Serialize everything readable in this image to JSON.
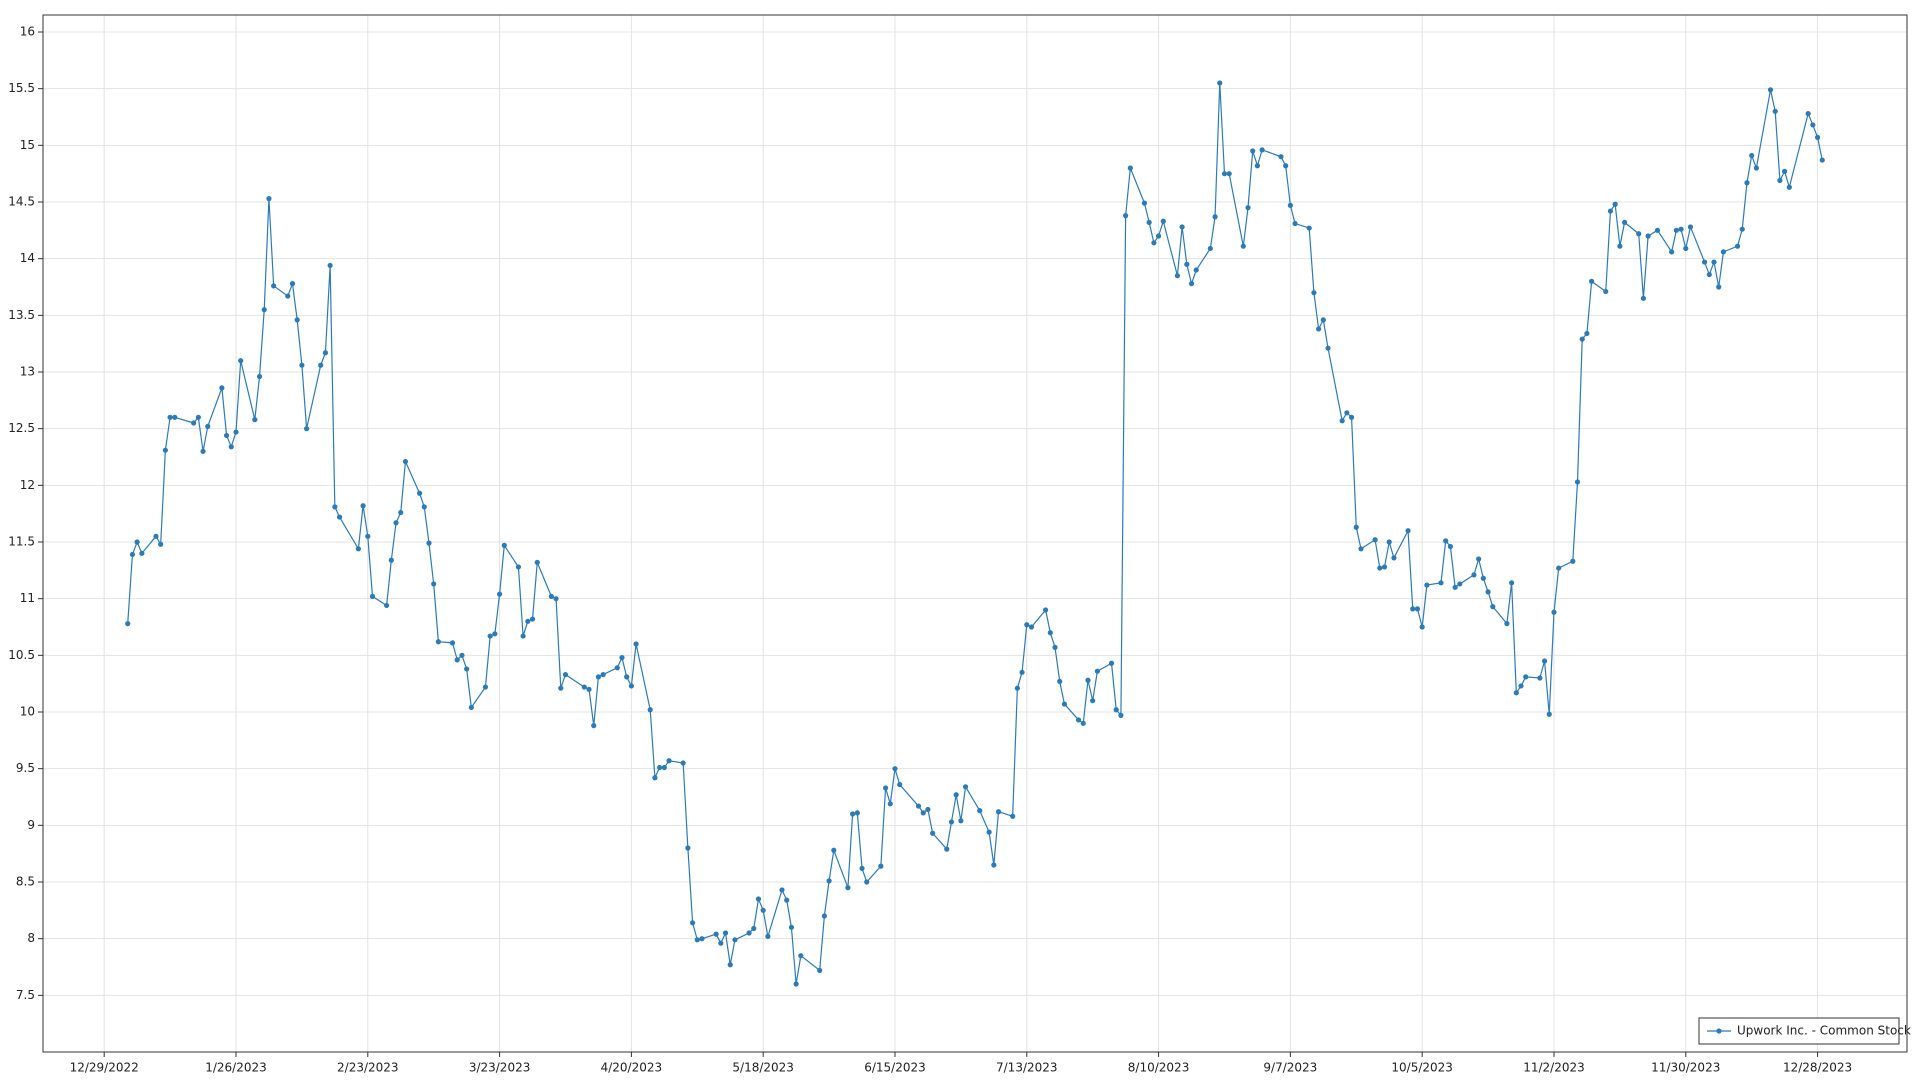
{
  "chart_data": {
    "type": "line",
    "x": [
      "2023-01-03",
      "2023-01-04",
      "2023-01-05",
      "2023-01-06",
      "2023-01-09",
      "2023-01-10",
      "2023-01-11",
      "2023-01-12",
      "2023-01-13",
      "2023-01-17",
      "2023-01-18",
      "2023-01-19",
      "2023-01-20",
      "2023-01-23",
      "2023-01-24",
      "2023-01-25",
      "2023-01-26",
      "2023-01-27",
      "2023-01-30",
      "2023-01-31",
      "2023-02-01",
      "2023-02-02",
      "2023-02-03",
      "2023-02-06",
      "2023-02-07",
      "2023-02-08",
      "2023-02-09",
      "2023-02-10",
      "2023-02-13",
      "2023-02-14",
      "2023-02-15",
      "2023-02-16",
      "2023-02-17",
      "2023-02-21",
      "2023-02-22",
      "2023-02-23",
      "2023-02-24",
      "2023-02-27",
      "2023-02-28",
      "2023-03-01",
      "2023-03-02",
      "2023-03-03",
      "2023-03-06",
      "2023-03-07",
      "2023-03-08",
      "2023-03-09",
      "2023-03-10",
      "2023-03-13",
      "2023-03-14",
      "2023-03-15",
      "2023-03-16",
      "2023-03-17",
      "2023-03-20",
      "2023-03-21",
      "2023-03-22",
      "2023-03-23",
      "2023-03-24",
      "2023-03-27",
      "2023-03-28",
      "2023-03-29",
      "2023-03-30",
      "2023-03-31",
      "2023-04-03",
      "2023-04-04",
      "2023-04-05",
      "2023-04-06",
      "2023-04-10",
      "2023-04-11",
      "2023-04-12",
      "2023-04-13",
      "2023-04-14",
      "2023-04-17",
      "2023-04-18",
      "2023-04-19",
      "2023-04-20",
      "2023-04-21",
      "2023-04-24",
      "2023-04-25",
      "2023-04-26",
      "2023-04-27",
      "2023-04-28",
      "2023-05-01",
      "2023-05-02",
      "2023-05-03",
      "2023-05-04",
      "2023-05-05",
      "2023-05-08",
      "2023-05-09",
      "2023-05-10",
      "2023-05-11",
      "2023-05-12",
      "2023-05-15",
      "2023-05-16",
      "2023-05-17",
      "2023-05-18",
      "2023-05-19",
      "2023-05-22",
      "2023-05-23",
      "2023-05-24",
      "2023-05-25",
      "2023-05-26",
      "2023-05-30",
      "2023-05-31",
      "2023-06-01",
      "2023-06-02",
      "2023-06-05",
      "2023-06-06",
      "2023-06-07",
      "2023-06-08",
      "2023-06-09",
      "2023-06-12",
      "2023-06-13",
      "2023-06-14",
      "2023-06-15",
      "2023-06-16",
      "2023-06-20",
      "2023-06-21",
      "2023-06-22",
      "2023-06-23",
      "2023-06-26",
      "2023-06-27",
      "2023-06-28",
      "2023-06-29",
      "2023-06-30",
      "2023-07-03",
      "2023-07-05",
      "2023-07-06",
      "2023-07-07",
      "2023-07-10",
      "2023-07-11",
      "2023-07-12",
      "2023-07-13",
      "2023-07-14",
      "2023-07-17",
      "2023-07-18",
      "2023-07-19",
      "2023-07-20",
      "2023-07-21",
      "2023-07-24",
      "2023-07-25",
      "2023-07-26",
      "2023-07-27",
      "2023-07-28",
      "2023-07-31",
      "2023-08-01",
      "2023-08-02",
      "2023-08-03",
      "2023-08-04",
      "2023-08-07",
      "2023-08-08",
      "2023-08-09",
      "2023-08-10",
      "2023-08-11",
      "2023-08-14",
      "2023-08-15",
      "2023-08-16",
      "2023-08-17",
      "2023-08-18",
      "2023-08-21",
      "2023-08-22",
      "2023-08-23",
      "2023-08-24",
      "2023-08-25",
      "2023-08-28",
      "2023-08-29",
      "2023-08-30",
      "2023-08-31",
      "2023-09-01",
      "2023-09-05",
      "2023-09-06",
      "2023-09-07",
      "2023-09-08",
      "2023-09-11",
      "2023-09-12",
      "2023-09-13",
      "2023-09-14",
      "2023-09-15",
      "2023-09-18",
      "2023-09-19",
      "2023-09-20",
      "2023-09-21",
      "2023-09-22",
      "2023-09-25",
      "2023-09-26",
      "2023-09-27",
      "2023-09-28",
      "2023-09-29",
      "2023-10-02",
      "2023-10-03",
      "2023-10-04",
      "2023-10-05",
      "2023-10-06",
      "2023-10-09",
      "2023-10-10",
      "2023-10-11",
      "2023-10-12",
      "2023-10-13",
      "2023-10-16",
      "2023-10-17",
      "2023-10-18",
      "2023-10-19",
      "2023-10-20",
      "2023-10-23",
      "2023-10-24",
      "2023-10-25",
      "2023-10-26",
      "2023-10-27",
      "2023-10-30",
      "2023-10-31",
      "2023-11-01",
      "2023-11-02",
      "2023-11-03",
      "2023-11-06",
      "2023-11-07",
      "2023-11-08",
      "2023-11-09",
      "2023-11-10",
      "2023-11-13",
      "2023-11-14",
      "2023-11-15",
      "2023-11-16",
      "2023-11-17",
      "2023-11-20",
      "2023-11-21",
      "2023-11-22",
      "2023-11-24",
      "2023-11-27",
      "2023-11-28",
      "2023-11-29",
      "2023-11-30",
      "2023-12-01",
      "2023-12-04",
      "2023-12-05",
      "2023-12-06",
      "2023-12-07",
      "2023-12-08",
      "2023-12-11",
      "2023-12-12",
      "2023-12-13",
      "2023-12-14",
      "2023-12-15",
      "2023-12-18",
      "2023-12-19",
      "2023-12-20",
      "2023-12-21",
      "2023-12-22",
      "2023-12-26",
      "2023-12-27",
      "2023-12-28",
      "2023-12-29"
    ],
    "series": [
      {
        "name": "Upwork Inc. - Common Stock",
        "color": "#2b7bb9",
        "values": [
          10.78,
          11.39,
          11.5,
          11.4,
          11.55,
          11.48,
          12.31,
          12.6,
          12.6,
          12.55,
          12.6,
          12.3,
          12.52,
          12.86,
          12.44,
          12.34,
          12.47,
          13.1,
          12.58,
          12.96,
          13.55,
          14.53,
          13.76,
          13.67,
          13.78,
          13.46,
          13.06,
          12.5,
          13.06,
          13.17,
          13.94,
          11.81,
          11.72,
          11.44,
          11.82,
          11.55,
          11.02,
          10.94,
          11.34,
          11.67,
          11.76,
          12.21,
          11.93,
          11.81,
          11.49,
          11.13,
          10.62,
          10.61,
          10.46,
          10.5,
          10.38,
          10.04,
          10.22,
          10.67,
          10.69,
          11.04,
          11.47,
          11.28,
          10.67,
          10.8,
          10.82,
          11.32,
          11.02,
          11.0,
          10.21,
          10.33,
          10.22,
          10.2,
          9.88,
          10.31,
          10.33,
          10.39,
          10.48,
          10.31,
          10.23,
          10.6,
          10.02,
          9.42,
          9.51,
          9.51,
          9.57,
          9.55,
          8.8,
          8.14,
          7.99,
          8.0,
          8.04,
          7.96,
          8.05,
          7.77,
          7.99,
          8.05,
          8.09,
          8.35,
          8.25,
          8.02,
          8.43,
          8.34,
          8.1,
          7.6,
          7.85,
          7.72,
          8.2,
          8.51,
          8.78,
          8.45,
          9.1,
          9.11,
          8.62,
          8.5,
          8.64,
          9.33,
          9.19,
          9.5,
          9.36,
          9.17,
          9.11,
          9.14,
          8.93,
          8.79,
          9.03,
          9.27,
          9.04,
          9.34,
          9.13,
          8.94,
          8.65,
          9.12,
          9.08,
          10.21,
          10.35,
          10.77,
          10.75,
          10.9,
          10.7,
          10.57,
          10.27,
          10.07,
          9.93,
          9.9,
          10.28,
          10.1,
          10.36,
          10.43,
          10.02,
          9.97,
          14.38,
          14.8,
          14.49,
          14.32,
          14.14,
          14.2,
          14.33,
          13.85,
          14.28,
          13.95,
          13.78,
          13.9,
          14.09,
          14.37,
          15.55,
          14.75,
          14.75,
          14.11,
          14.45,
          14.95,
          14.82,
          14.96,
          14.9,
          14.82,
          14.47,
          14.31,
          14.27,
          13.7,
          13.38,
          13.46,
          13.21,
          12.57,
          12.64,
          12.6,
          11.63,
          11.44,
          11.52,
          11.27,
          11.28,
          11.5,
          11.36,
          11.6,
          10.91,
          10.91,
          10.75,
          11.12,
          11.14,
          11.51,
          11.46,
          11.1,
          11.13,
          11.21,
          11.35,
          11.18,
          11.06,
          10.93,
          10.78,
          11.14,
          10.17,
          10.23,
          10.31,
          10.3,
          10.45,
          9.98,
          10.88,
          11.27,
          11.33,
          12.03,
          13.29,
          13.34,
          13.8,
          13.71,
          14.42,
          14.48,
          14.11,
          14.32,
          14.22,
          13.65,
          14.2,
          14.25,
          14.06,
          14.25,
          14.26,
          14.09,
          14.28,
          13.97,
          13.86,
          13.97,
          13.75,
          14.06,
          14.11,
          14.26,
          14.67,
          14.91,
          14.8,
          15.49,
          15.3,
          14.69,
          14.77,
          14.63,
          15.28,
          15.18,
          15.07,
          14.87
        ]
      }
    ],
    "xlim": [
      "2022-12-16",
      "2024-01-16"
    ],
    "xticks": [
      {
        "value": "2022-12-29",
        "label": "12/29/2022"
      },
      {
        "value": "2023-01-26",
        "label": "1/26/2023"
      },
      {
        "value": "2023-02-23",
        "label": "2/23/2023"
      },
      {
        "value": "2023-03-23",
        "label": "3/23/2023"
      },
      {
        "value": "2023-04-20",
        "label": "4/20/2023"
      },
      {
        "value": "2023-05-18",
        "label": "5/18/2023"
      },
      {
        "value": "2023-06-15",
        "label": "6/15/2023"
      },
      {
        "value": "2023-07-13",
        "label": "7/13/2023"
      },
      {
        "value": "2023-08-10",
        "label": "8/10/2023"
      },
      {
        "value": "2023-09-07",
        "label": "9/7/2023"
      },
      {
        "value": "2023-10-05",
        "label": "10/5/2023"
      },
      {
        "value": "2023-11-02",
        "label": "11/2/2023"
      },
      {
        "value": "2023-11-30",
        "label": "11/30/2023"
      },
      {
        "value": "2023-12-28",
        "label": "12/28/2023"
      }
    ],
    "ylim": [
      7.0,
      16.15
    ],
    "yticks": [
      7.5,
      8,
      8.5,
      9,
      9.5,
      10,
      10.5,
      11,
      11.5,
      12,
      12.5,
      13,
      13.5,
      14,
      14.5,
      15,
      15.5,
      16
    ],
    "grid": true,
    "legend": "lower right"
  }
}
